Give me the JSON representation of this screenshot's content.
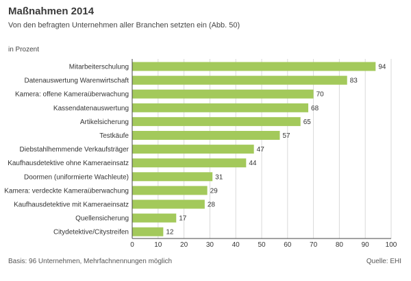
{
  "header": {
    "title": "Maßnahmen 2014",
    "subtitle": "Von den befragten Unternehmen aller Branchen setzten ein (Abb. 50)",
    "unit": "in Prozent"
  },
  "footer": {
    "basis": "Basis: 96 Unternehmen, Mehrfachnennungen möglich",
    "source": "Quelle: EHI"
  },
  "colors": {
    "bar": "#a3c95b",
    "grid": "#d9d9d9",
    "axis": "#444444",
    "text": "#333333"
  },
  "chart_data": {
    "type": "bar",
    "orientation": "horizontal",
    "title": "Maßnahmen 2014",
    "xlabel": "in Prozent",
    "xlim": [
      0,
      100
    ],
    "xticks": [
      0,
      10,
      20,
      30,
      40,
      50,
      60,
      70,
      80,
      90,
      100
    ],
    "grid": true,
    "categories": [
      "Mitarbeiterschulung",
      "Datenauswertung Warenwirtschaft",
      "Kamera: offene Kameraüberwachung",
      "Kassendatenauswertung",
      "Artikelsicherung",
      "Testkäufe",
      "Diebstahlhemmende Verkaufsträger",
      "Kaufhausdetektive ohne Kameraeinsatz",
      "Doormen (uniformierte Wachleute)",
      "Kamera: verdeckte Kameraüberwachung",
      "Kaufhausdetektive mit Kameraeinsatz",
      "Quellensicherung",
      "Citydetektive/Citystreifen"
    ],
    "values": [
      94,
      83,
      70,
      68,
      65,
      57,
      47,
      44,
      31,
      29,
      28,
      17,
      12
    ]
  }
}
